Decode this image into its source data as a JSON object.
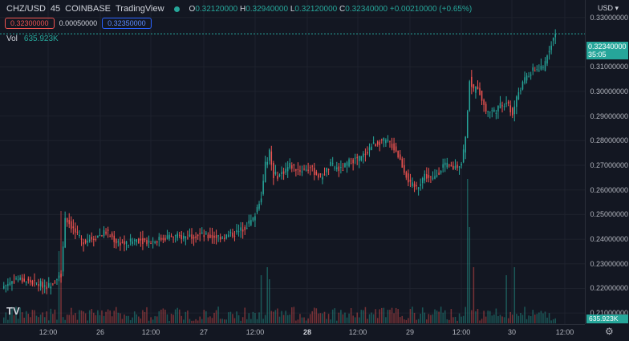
{
  "header": {
    "symbol": "CHZ/USD",
    "interval": "45",
    "exchange": "COINBASE",
    "provider": "TradingView",
    "open_label": "O",
    "open": "0.32120000",
    "high_label": "H",
    "high": "0.32940000",
    "low_label": "L",
    "low": "0.32120000",
    "close_label": "C",
    "close": "0.32340000",
    "change": "+0.00210000 (+0.65%)"
  },
  "quote": {
    "bid": "0.32300000",
    "spread": "0.00050000",
    "ask": "0.32350000"
  },
  "volume": {
    "label": "Vol",
    "value": "635.923K"
  },
  "price_axis": {
    "currency": "USD",
    "ticks": [
      "0.33000000",
      "0.31000000",
      "0.30000000",
      "0.29000000",
      "0.28000000",
      "0.27000000",
      "0.26000000",
      "0.25000000",
      "0.24000000",
      "0.23000000",
      "0.22000000",
      "0.21000000"
    ],
    "last_price": "0.32340000",
    "countdown": "35:05",
    "volume_badge": "635.923K"
  },
  "time_axis": {
    "ticks": [
      {
        "label": "12:00",
        "bold": false
      },
      {
        "label": "26",
        "bold": false
      },
      {
        "label": "12:00",
        "bold": false
      },
      {
        "label": "27",
        "bold": false
      },
      {
        "label": "12:00",
        "bold": false
      },
      {
        "label": "28",
        "bold": true
      },
      {
        "label": "12:00",
        "bold": false
      },
      {
        "label": "29",
        "bold": false
      },
      {
        "label": "12:00",
        "bold": false
      },
      {
        "label": "30",
        "bold": false
      },
      {
        "label": "12:00",
        "bold": false
      }
    ]
  },
  "colors": {
    "up": "#26a69a",
    "down": "#ef5350",
    "background": "#131722",
    "grid": "#1e222d"
  },
  "chart_data": {
    "type": "candlestick",
    "title": "",
    "y_range": [
      0.2055,
      0.3345
    ],
    "last_price": 0.3234,
    "anchors": [
      [
        0,
        0.221
      ],
      [
        6,
        0.224
      ],
      [
        16,
        0.222
      ],
      [
        22,
        0.221
      ],
      [
        26,
        0.225
      ],
      [
        28,
        0.226
      ],
      [
        30,
        0.249
      ],
      [
        34,
        0.244
      ],
      [
        38,
        0.239
      ],
      [
        45,
        0.241
      ],
      [
        50,
        0.243
      ],
      [
        55,
        0.239
      ],
      [
        60,
        0.238
      ],
      [
        65,
        0.24
      ],
      [
        72,
        0.239
      ],
      [
        80,
        0.241
      ],
      [
        88,
        0.241
      ],
      [
        95,
        0.242
      ],
      [
        100,
        0.241
      ],
      [
        108,
        0.241
      ],
      [
        115,
        0.243
      ],
      [
        118,
        0.245
      ],
      [
        122,
        0.248
      ],
      [
        126,
        0.258
      ],
      [
        128,
        0.27
      ],
      [
        130,
        0.275
      ],
      [
        132,
        0.266
      ],
      [
        135,
        0.266
      ],
      [
        140,
        0.27
      ],
      [
        145,
        0.268
      ],
      [
        150,
        0.269
      ],
      [
        155,
        0.265
      ],
      [
        160,
        0.27
      ],
      [
        165,
        0.268
      ],
      [
        170,
        0.272
      ],
      [
        175,
        0.273
      ],
      [
        180,
        0.278
      ],
      [
        185,
        0.28
      ],
      [
        189,
        0.279
      ],
      [
        192,
        0.276
      ],
      [
        196,
        0.268
      ],
      [
        199,
        0.262
      ],
      [
        202,
        0.261
      ],
      [
        206,
        0.266
      ],
      [
        210,
        0.264
      ],
      [
        215,
        0.27
      ],
      [
        220,
        0.269
      ],
      [
        224,
        0.271
      ],
      [
        226,
        0.281
      ],
      [
        228,
        0.305
      ],
      [
        230,
        0.3
      ],
      [
        232,
        0.302
      ],
      [
        236,
        0.292
      ],
      [
        240,
        0.292
      ],
      [
        246,
        0.296
      ],
      [
        249,
        0.291
      ],
      [
        252,
        0.3
      ],
      [
        256,
        0.306
      ],
      [
        260,
        0.309
      ],
      [
        264,
        0.309
      ],
      [
        266,
        0.315
      ],
      [
        268,
        0.32
      ],
      [
        270,
        0.3234
      ]
    ],
    "volume_spikes": [
      [
        27,
        90
      ],
      [
        28,
        140
      ],
      [
        126,
        60
      ],
      [
        129,
        70
      ],
      [
        130,
        55
      ],
      [
        227,
        180
      ],
      [
        228,
        120
      ],
      [
        230,
        70
      ],
      [
        246,
        60
      ],
      [
        250,
        70
      ]
    ]
  }
}
